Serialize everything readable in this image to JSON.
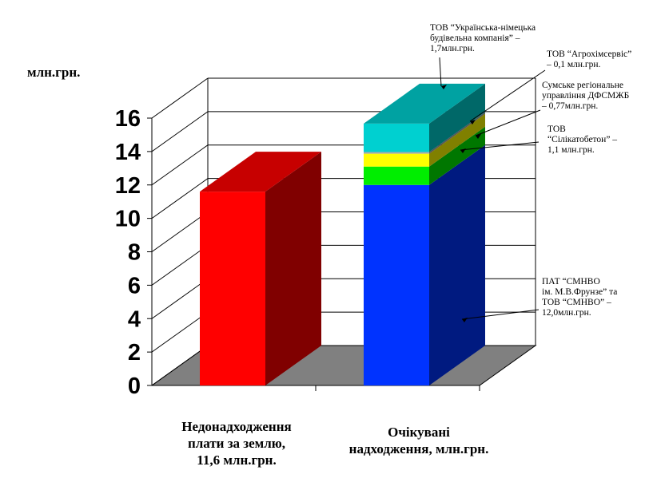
{
  "chart_data": {
    "type": "bar",
    "style": "3d-stacked",
    "ylabel": "млн.грн.",
    "ylim": [
      0,
      16
    ],
    "yticks": [
      "0",
      "2",
      "4",
      "6",
      "8",
      "10",
      "12",
      "14",
      "16"
    ],
    "grid": true,
    "categories": [
      [
        "Недонадходження",
        "плати за землю,",
        "11,6 млн.грн."
      ],
      [
        "Очікувані",
        "надходження, млн.грн."
      ]
    ],
    "bars": [
      {
        "segments": [
          {
            "value": 11.6,
            "color": "#ff0000"
          }
        ]
      },
      {
        "segments": [
          {
            "value": 12.0,
            "color": "#0033ff",
            "annotation": [
              "ПАТ “СМНВО",
              "ім. М.В.Фрунзе”  та",
              "ТОВ “СМНВО” –",
              "12,0млн.грн."
            ]
          },
          {
            "value": 1.1,
            "color": "#00ee00",
            "annotation": [
              "ТОВ",
              "“Сілікатобетон” –",
              "1,1 млн.грн."
            ]
          },
          {
            "value": 0.77,
            "color": "#ffff00",
            "annotation": [
              "Сумське регіональне",
              "управління ДФСМЖБ",
              "– 0,77млн.грн."
            ]
          },
          {
            "value": 0.1,
            "color": "#aaaaaa",
            "annotation": [
              "ТОВ “Агрохімсервіс”",
              "– 0,1 млн.грн."
            ]
          },
          {
            "value": 1.7,
            "color": "#00d0d0",
            "annotation": [
              "ТОВ “Українська-німецька",
              "будівельна компанія” –",
              "1,7млн.грн."
            ]
          }
        ]
      }
    ]
  }
}
